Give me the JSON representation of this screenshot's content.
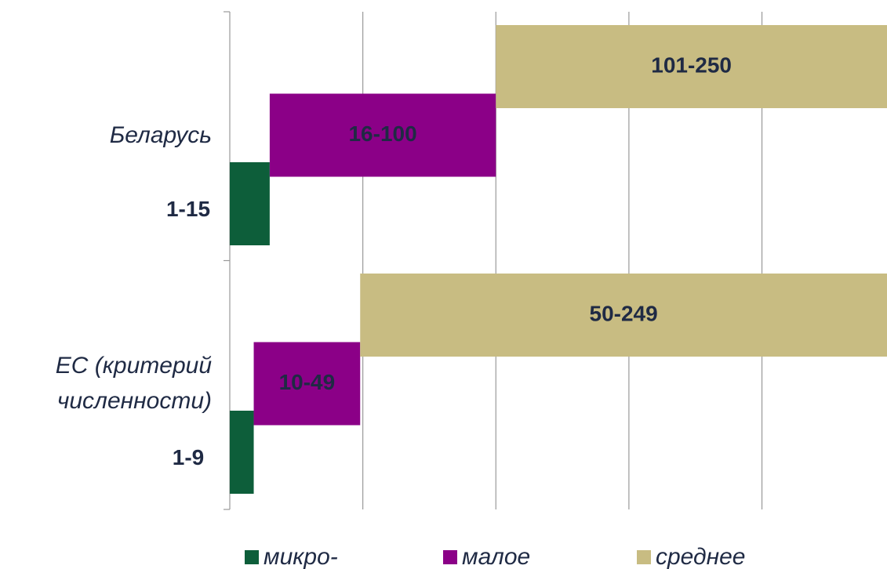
{
  "chart_data": {
    "type": "range_bar",
    "categories": [
      "Беларусь",
      "ЕС (критерий численности)"
    ],
    "series": [
      {
        "name": "микро-",
        "color": "#0d5e3a",
        "values": [
          15,
          9
        ],
        "value_labels": [
          "1-15",
          "1-9"
        ]
      },
      {
        "name": "малое",
        "color": "#8b0087",
        "values": [
          100,
          49
        ],
        "value_labels": [
          "16-100",
          "10-49"
        ]
      },
      {
        "name": "среднее",
        "color": "#c8bc82",
        "values": [
          250,
          249
        ],
        "value_labels": [
          "101-250",
          "50-249"
        ]
      }
    ],
    "xlim": [
      0,
      247
    ],
    "xgrid": [
      0,
      50,
      100,
      150,
      200
    ],
    "grid": true
  }
}
